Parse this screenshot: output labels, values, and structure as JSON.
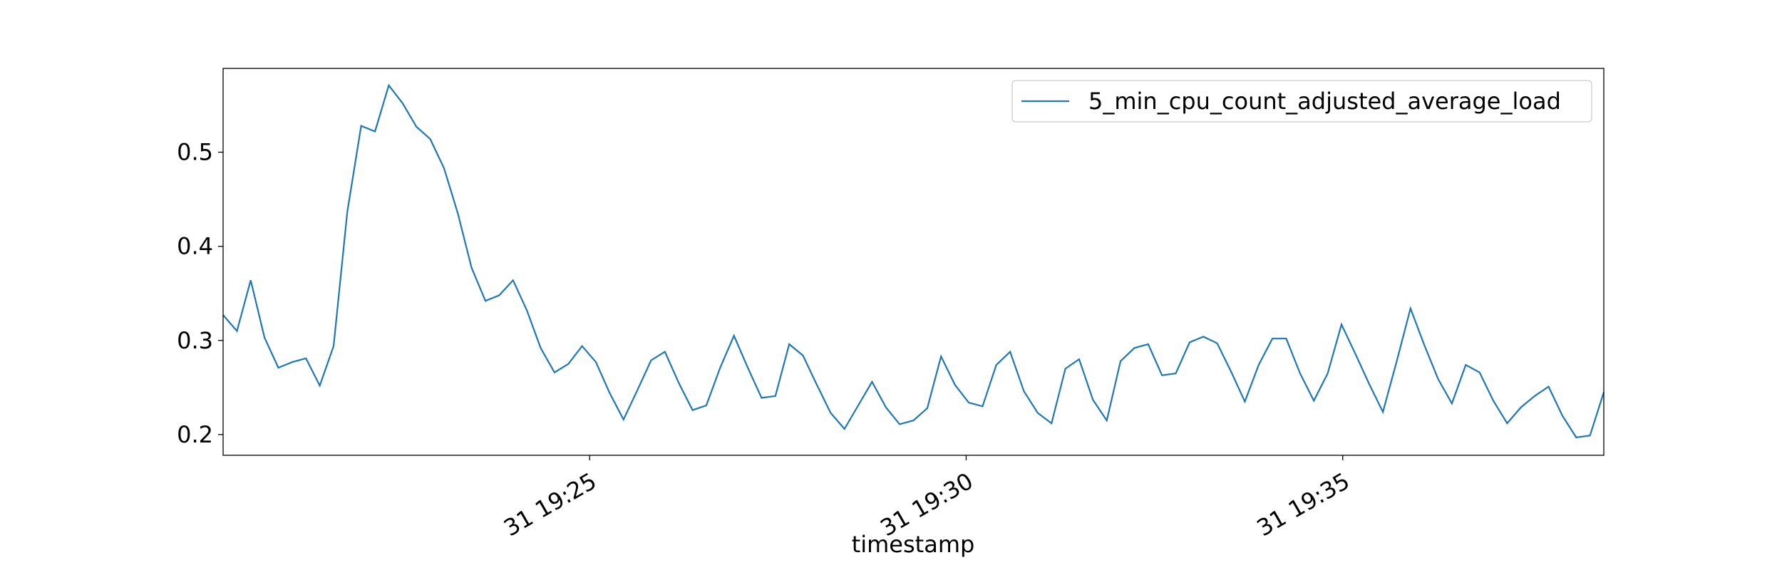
{
  "chart_data": {
    "type": "line",
    "xlabel": "timestamp",
    "x": [
      "31 19:20:08",
      "31 19:20:19",
      "31 19:20:30",
      "31 19:20:41",
      "31 19:20:52",
      "31 19:21:03",
      "31 19:21:14",
      "31 19:21:25",
      "31 19:21:36",
      "31 19:21:47",
      "31 19:21:58",
      "31 19:22:09",
      "31 19:22:20",
      "31 19:22:31",
      "31 19:22:42",
      "31 19:22:53",
      "31 19:23:04",
      "31 19:23:15",
      "31 19:23:26",
      "31 19:23:37",
      "31 19:23:48",
      "31 19:23:59",
      "31 19:24:10",
      "31 19:24:21",
      "31 19:24:32",
      "31 19:24:43",
      "31 19:24:54",
      "31 19:25:05",
      "31 19:25:16",
      "31 19:25:27",
      "31 19:25:38",
      "31 19:25:49",
      "31 19:26:00",
      "31 19:26:11",
      "31 19:26:22",
      "31 19:26:33",
      "31 19:26:44",
      "31 19:26:55",
      "31 19:27:06",
      "31 19:27:17",
      "31 19:27:28",
      "31 19:27:39",
      "31 19:27:50",
      "31 19:28:01",
      "31 19:28:12",
      "31 19:28:23",
      "31 19:28:34",
      "31 19:28:45",
      "31 19:28:56",
      "31 19:29:07",
      "31 19:29:18",
      "31 19:29:29",
      "31 19:29:40",
      "31 19:29:51",
      "31 19:30:02",
      "31 19:30:13",
      "31 19:30:24",
      "31 19:30:35",
      "31 19:30:46",
      "31 19:30:57",
      "31 19:31:08",
      "31 19:31:19",
      "31 19:31:30",
      "31 19:31:41",
      "31 19:31:52",
      "31 19:32:03",
      "31 19:32:14",
      "31 19:32:25",
      "31 19:32:36",
      "31 19:32:47",
      "31 19:32:58",
      "31 19:33:09",
      "31 19:33:20",
      "31 19:33:31",
      "31 19:33:42",
      "31 19:33:53",
      "31 19:34:04",
      "31 19:34:15",
      "31 19:34:26",
      "31 19:34:37",
      "31 19:34:48",
      "31 19:34:59",
      "31 19:35:10",
      "31 19:35:21",
      "31 19:35:32",
      "31 19:35:43",
      "31 19:35:54",
      "31 19:36:05",
      "31 19:36:16",
      "31 19:36:27",
      "31 19:36:38",
      "31 19:36:49",
      "31 19:37:00",
      "31 19:37:11",
      "31 19:37:22",
      "31 19:37:33",
      "31 19:37:44",
      "31 19:37:55",
      "31 19:38:06",
      "31 19:38:17",
      "31 19:38:28"
    ],
    "series": [
      {
        "name": "5_min_cpu_count_adjusted_average_load",
        "color": "#1f77b4",
        "values": [
          0.327,
          0.31,
          0.364,
          0.303,
          0.271,
          0.277,
          0.281,
          0.252,
          0.294,
          0.437,
          0.528,
          0.522,
          0.571,
          0.552,
          0.527,
          0.514,
          0.483,
          0.435,
          0.377,
          0.342,
          0.348,
          0.364,
          0.332,
          0.292,
          0.266,
          0.275,
          0.294,
          0.277,
          0.244,
          0.216,
          0.247,
          0.279,
          0.288,
          0.255,
          0.226,
          0.231,
          0.271,
          0.305,
          0.271,
          0.239,
          0.241,
          0.296,
          0.284,
          0.253,
          0.223,
          0.206,
          0.231,
          0.256,
          0.229,
          0.211,
          0.215,
          0.228,
          0.283,
          0.253,
          0.234,
          0.23,
          0.274,
          0.288,
          0.246,
          0.223,
          0.212,
          0.27,
          0.28,
          0.237,
          0.215,
          0.278,
          0.292,
          0.296,
          0.263,
          0.265,
          0.298,
          0.304,
          0.297,
          0.267,
          0.235,
          0.274,
          0.302,
          0.302,
          0.265,
          0.236,
          0.265,
          0.317,
          0.286,
          0.254,
          0.224,
          0.278,
          0.334,
          0.295,
          0.259,
          0.233,
          0.274,
          0.266,
          0.236,
          0.212,
          0.229,
          0.241,
          0.251,
          0.22,
          0.197,
          0.199,
          0.245
        ]
      }
    ],
    "xlim": [
      "31 19:20:08",
      "31 19:38:28"
    ],
    "xticks": [
      {
        "value": "31 19:25:00",
        "label": "31 19:25"
      },
      {
        "value": "31 19:30:00",
        "label": "31 19:30"
      },
      {
        "value": "31 19:35:00",
        "label": "31 19:35"
      }
    ],
    "ylim": [
      0.178,
      0.589
    ],
    "yticks": [
      0.2,
      0.3,
      0.4,
      0.5
    ],
    "legend": "upper right"
  }
}
